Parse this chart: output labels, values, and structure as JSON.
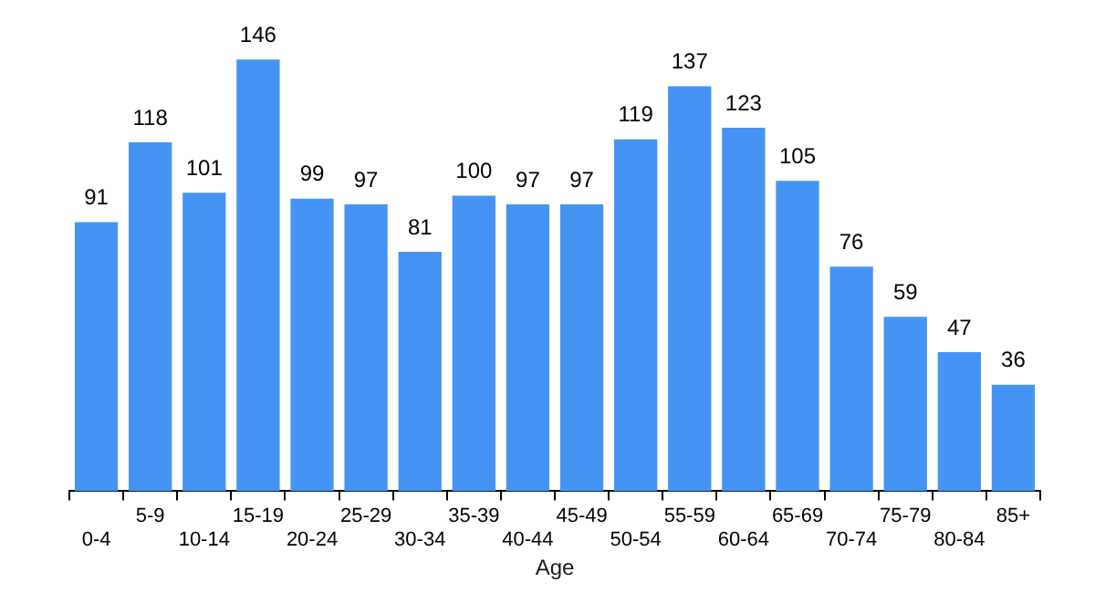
{
  "chart_data": {
    "type": "bar",
    "xlabel": "Age",
    "categories": [
      "0-4",
      "5-9",
      "10-14",
      "15-19",
      "20-24",
      "25-29",
      "30-34",
      "35-39",
      "40-44",
      "45-49",
      "50-54",
      "55-59",
      "60-64",
      "65-69",
      "70-74",
      "75-79",
      "80-84",
      "85+"
    ],
    "values": [
      91,
      118,
      101,
      146,
      99,
      97,
      81,
      100,
      97,
      97,
      119,
      137,
      123,
      105,
      76,
      59,
      47,
      36
    ],
    "color": "#4594f3",
    "data_labels": true,
    "grid": false,
    "legend": false
  }
}
